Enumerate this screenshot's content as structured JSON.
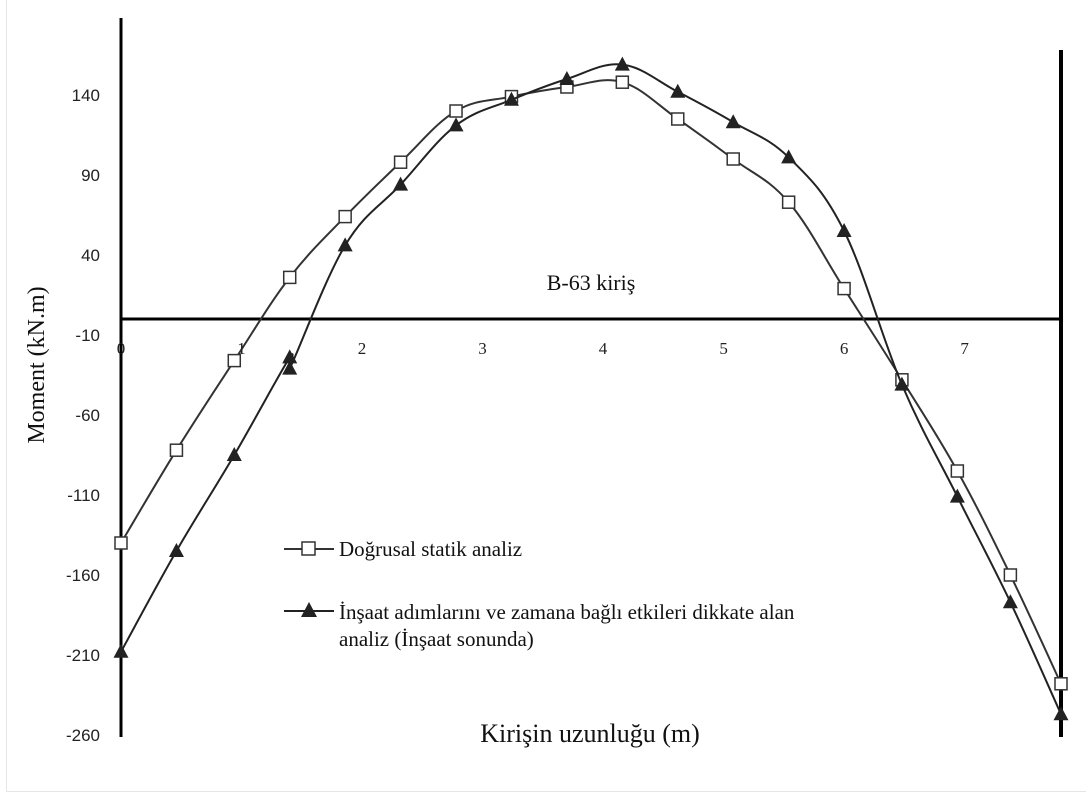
{
  "chart_data": {
    "type": "line",
    "title": "B-63 kiriş",
    "xlabel": "Kirişin uzunluğu (m)",
    "ylabel": "Moment (kN.m)",
    "xlim": [
      0,
      7.8
    ],
    "ylim": [
      -260,
      165
    ],
    "y_ticks": [
      140,
      90,
      40,
      -10,
      -60,
      -110,
      -160,
      -210,
      -260
    ],
    "x_ticks": [
      0,
      1,
      2,
      3,
      4,
      5,
      6,
      7
    ],
    "grid": false,
    "legend_position": "lower-left",
    "series": [
      {
        "name": "Doğrusal statik analiz",
        "marker": "square-open",
        "color": "#333333",
        "x": [
          0,
          0.46,
          0.94,
          1.4,
          1.86,
          2.32,
          2.78,
          3.24,
          3.7,
          4.16,
          4.62,
          5.08,
          5.54,
          6.0,
          6.48,
          6.94,
          7.38,
          7.8
        ],
        "y": [
          -140,
          -82,
          -26,
          26,
          64,
          98,
          130,
          139,
          145,
          148,
          125,
          100,
          73,
          19,
          -38,
          -95,
          -160,
          -228
        ]
      },
      {
        "name": "İnşaat adımlarını ve zamana bağlı etkileri dikkate alan analiz (İnşaat sonunda)",
        "marker": "triangle-filled",
        "color": "#222222",
        "x": [
          0,
          0.46,
          0.94,
          1.4,
          1.4,
          1.86,
          2.32,
          2.78,
          3.24,
          3.7,
          4.16,
          4.62,
          5.08,
          5.54,
          6.0,
          6.48,
          6.94,
          7.38,
          7.8
        ],
        "y": [
          -208,
          -145,
          -85,
          -24,
          -31,
          46,
          84,
          121,
          137,
          150,
          159,
          142,
          123,
          101,
          55,
          -41,
          -111,
          -177,
          -247
        ]
      }
    ]
  }
}
